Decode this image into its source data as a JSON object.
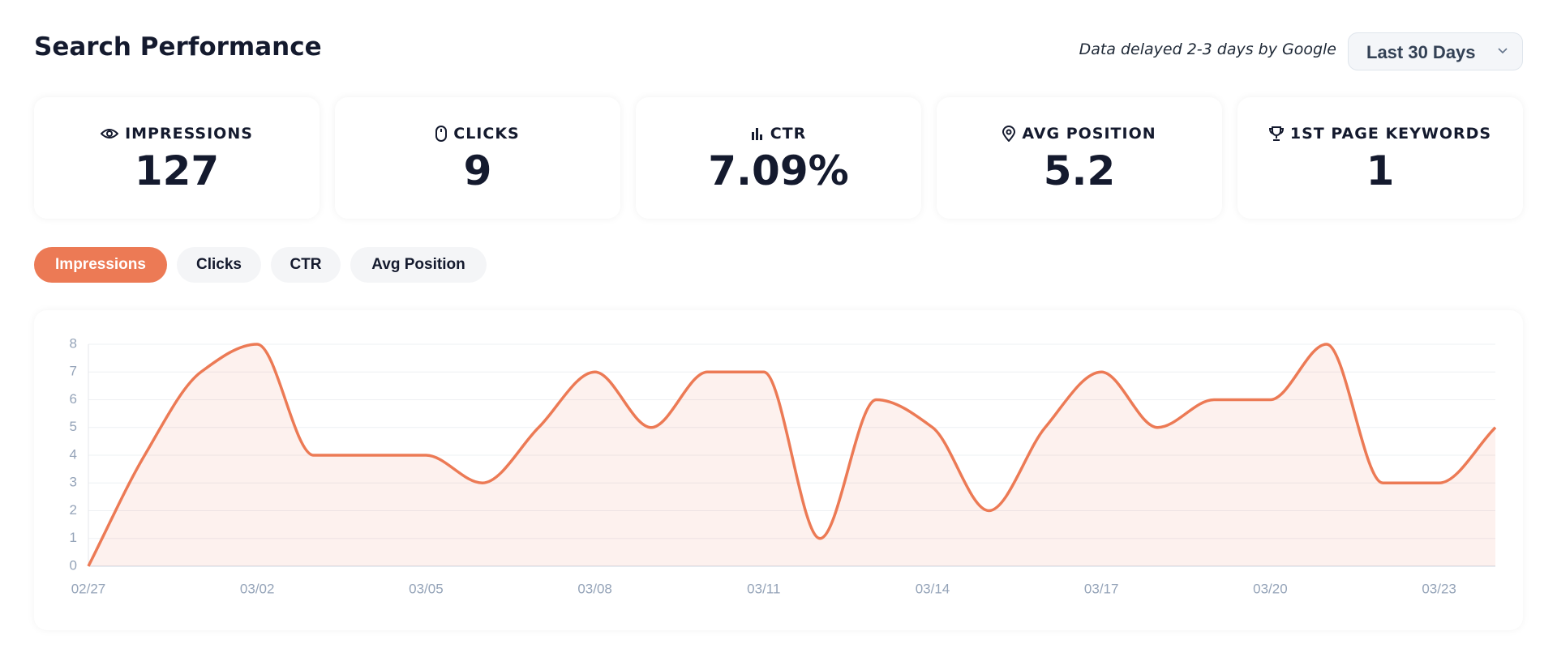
{
  "header": {
    "title": "Search Performance",
    "note": "Data delayed 2-3 days by Google",
    "range": "Last 30 Days"
  },
  "stats": [
    {
      "label": "IMPRESSIONS",
      "value": "127"
    },
    {
      "label": "CLICKS",
      "value": "9"
    },
    {
      "label": "CTR",
      "value": "7.09%"
    },
    {
      "label": "AVG POSITION",
      "value": "5.2"
    },
    {
      "label": "1ST PAGE KEYWORDS",
      "value": "1"
    }
  ],
  "tabs": [
    "Impressions",
    "Clicks",
    "CTR",
    "Avg Position"
  ],
  "chart_data": {
    "type": "line",
    "categories": [
      "02/27",
      null,
      null,
      "03/02",
      null,
      null,
      "03/05",
      null,
      null,
      "03/08",
      null,
      null,
      "03/11",
      null,
      null,
      "03/14",
      null,
      null,
      "03/17",
      null,
      null,
      "03/20",
      null,
      null,
      "03/23",
      null
    ],
    "values": [
      0,
      4,
      7,
      8,
      4,
      4,
      4,
      3,
      5,
      7,
      5,
      7,
      7,
      1,
      6,
      5,
      2,
      5,
      7,
      5,
      6,
      6,
      8,
      3,
      3,
      5
    ],
    "color": "#ec7a55",
    "area": true,
    "ylim": [
      0,
      8
    ],
    "yticks": [
      0,
      1,
      2,
      3,
      4,
      5,
      6,
      7,
      8
    ],
    "grid": true
  }
}
